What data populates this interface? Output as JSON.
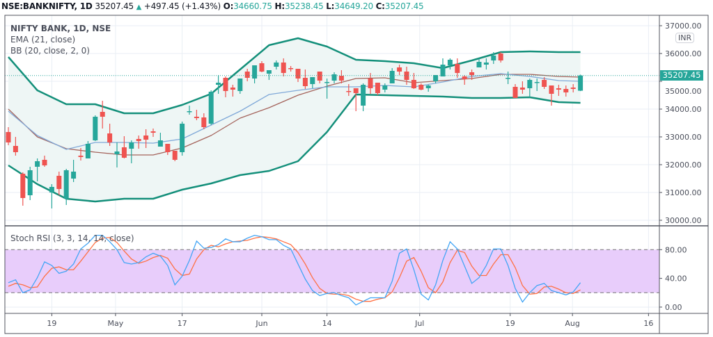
{
  "header": {
    "symbol": "NSE:BANKNIFTY, 1D",
    "last": "35207.45",
    "change": "+497.45 (+1.43%)",
    "o_label": "O:",
    "o": "34660.75",
    "h_label": "H:",
    "h": "35238.45",
    "l_label": "L:",
    "l": "34649.20",
    "c_label": "C:",
    "c": "35207.45",
    "up_icon": "triangle-up-icon"
  },
  "legend": {
    "title": "NIFTY BANK, 1D, NSE",
    "ema": "EMA (21, close)",
    "bb": "BB (20, close, 2, 0)"
  },
  "stoch": {
    "label": "Stoch RSI (3, 3, 14, 14, close)"
  },
  "currency": "INR",
  "price_tag": "35207.45",
  "price_axis": [
    "37000.00",
    "36000.00",
    "35000.00",
    "34000.00",
    "33000.00",
    "32000.00",
    "31000.00",
    "30000.00"
  ],
  "stoch_axis": [
    "80.00",
    "40.00",
    "0.00"
  ],
  "time_axis": [
    {
      "label": "19",
      "index": 6
    },
    {
      "label": "May",
      "index": 14.8
    },
    {
      "label": "17",
      "index": 24
    },
    {
      "label": "Jun",
      "index": 35
    },
    {
      "label": "14",
      "index": 44
    },
    {
      "label": "Jul",
      "index": 56.8
    },
    {
      "label": "19",
      "index": 69.3
    },
    {
      "label": "Aug",
      "index": 77.9
    },
    {
      "label": "16",
      "index": 88.4
    }
  ],
  "colors": {
    "up": "#26a69a",
    "down": "#ef5350",
    "bb": "#138f7a",
    "bb_fill": "#eef6f5",
    "basis": "#7fa8d8",
    "ema": "#a4635b",
    "k": "#42a5f5",
    "d": "#ff7043",
    "band": "#e8cdfb"
  },
  "chart_data": {
    "type": "candlestick",
    "price_range": [
      29600,
      37300
    ],
    "candles": [
      [
        33175,
        33350,
        32700,
        32800
      ],
      [
        32675,
        33000,
        32325,
        32450
      ],
      [
        31675,
        31725,
        30525,
        30800
      ],
      [
        30900,
        31925,
        30725,
        31800
      ],
      [
        31925,
        32225,
        31400,
        32125
      ],
      [
        32175,
        32325,
        31925,
        31975
      ],
      [
        31000,
        31300,
        30425,
        31200
      ],
      [
        31600,
        31750,
        30900,
        31125
      ],
      [
        30775,
        31850,
        30550,
        31800
      ],
      [
        31500,
        32175,
        31375,
        31750
      ],
      [
        32325,
        32600,
        32150,
        32275
      ],
      [
        32225,
        32850,
        32225,
        32750
      ],
      [
        32875,
        33775,
        32850,
        33725
      ],
      [
        33900,
        34300,
        33300,
        33725
      ],
      [
        33125,
        33475,
        32675,
        32800
      ],
      [
        32375,
        32800,
        31900,
        32475
      ],
      [
        32625,
        33025,
        32225,
        32250
      ],
      [
        32575,
        32875,
        32050,
        32800
      ],
      [
        32925,
        33050,
        32575,
        32850
      ],
      [
        33050,
        33275,
        32600,
        32900
      ],
      [
        33200,
        33300,
        33000,
        33150
      ],
      [
        32650,
        33150,
        32650,
        32875
      ],
      [
        32750,
        32750,
        32350,
        32450
      ],
      [
        32500,
        32500,
        32125,
        32175
      ],
      [
        32450,
        33550,
        32325,
        33475
      ],
      [
        33900,
        34125,
        33800,
        33925
      ],
      [
        33725,
        33975,
        33600,
        33675
      ],
      [
        33700,
        33850,
        33275,
        33350
      ],
      [
        33475,
        34675,
        33425,
        34625
      ],
      [
        34875,
        35225,
        34550,
        34950
      ],
      [
        35125,
        35175,
        34425,
        34650
      ],
      [
        34775,
        34875,
        34450,
        34700
      ],
      [
        34650,
        35100,
        34550,
        35100
      ],
      [
        35350,
        35450,
        35000,
        35125
      ],
      [
        35100,
        35575,
        34925,
        35575
      ],
      [
        35650,
        35725,
        35325,
        35350
      ],
      [
        35275,
        35400,
        35050,
        35400
      ],
      [
        35525,
        35750,
        35425,
        35675
      ],
      [
        35675,
        35825,
        35175,
        35300
      ],
      [
        35475,
        35550,
        35350,
        35450
      ],
      [
        35450,
        35450,
        34975,
        35100
      ],
      [
        35125,
        35425,
        34725,
        34825
      ],
      [
        34900,
        35150,
        34750,
        35150
      ],
      [
        35350,
        35350,
        34925,
        35025
      ],
      [
        34950,
        35100,
        34375,
        34975
      ],
      [
        35025,
        35325,
        34925,
        35250
      ],
      [
        35200,
        35400,
        34925,
        35025
      ],
      [
        34650,
        34900,
        34475,
        34625
      ],
      [
        34750,
        34750,
        33925,
        34575
      ],
      [
        34125,
        34925,
        33925,
        34875
      ],
      [
        35100,
        35300,
        34550,
        34750
      ],
      [
        34950,
        34950,
        34500,
        34575
      ],
      [
        34700,
        34925,
        34600,
        34850
      ],
      [
        34925,
        35475,
        34925,
        35375
      ],
      [
        35500,
        35600,
        35225,
        35350
      ],
      [
        35350,
        35525,
        34875,
        35050
      ],
      [
        35050,
        35300,
        34725,
        34750
      ],
      [
        34875,
        34925,
        34675,
        34700
      ],
      [
        34750,
        34875,
        34625,
        34850
      ],
      [
        35000,
        35225,
        34925,
        35225
      ],
      [
        35175,
        35825,
        35175,
        35600
      ],
      [
        35575,
        35825,
        35425,
        35775
      ],
      [
        35625,
        35825,
        35125,
        35300
      ],
      [
        35175,
        35225,
        34875,
        35075
      ],
      [
        35325,
        35425,
        35050,
        35225
      ],
      [
        35500,
        35825,
        35500,
        35700
      ],
      [
        35600,
        35825,
        35425,
        35675
      ],
      [
        35750,
        36050,
        35625,
        35925
      ],
      [
        36000,
        36050,
        35675,
        35750
      ],
      [
        35100,
        35350,
        34900,
        35125
      ],
      [
        34800,
        34900,
        34400,
        34400
      ],
      [
        34775,
        35000,
        34550,
        34700
      ],
      [
        34750,
        35100,
        34425,
        35050
      ],
      [
        34950,
        35100,
        34650,
        34975
      ],
      [
        35050,
        35150,
        34725,
        34800
      ],
      [
        34850,
        34850,
        34125,
        34550
      ],
      [
        34750,
        34875,
        34475,
        34700
      ],
      [
        34725,
        34850,
        34450,
        34600
      ],
      [
        34775,
        34900,
        34600,
        34725
      ],
      [
        34660.75,
        35238.45,
        34649.2,
        35207.45
      ]
    ],
    "indicator_sample_index": [
      0,
      4,
      8,
      12,
      16,
      20,
      24,
      28,
      32,
      36,
      40,
      44,
      48,
      52,
      56,
      60,
      64,
      68,
      72,
      76,
      79
    ],
    "bb_upper": [
      35875,
      34675,
      34175,
      34175,
      33850,
      33850,
      34150,
      34550,
      35425,
      36300,
      36550,
      36250,
      35775,
      35725,
      35650,
      35475,
      35750,
      36050,
      36075,
      36050,
      36050
    ],
    "bb_lower": [
      31975,
      31300,
      30775,
      30675,
      30775,
      30775,
      31100,
      31325,
      31625,
      31775,
      32125,
      33175,
      34525,
      34500,
      34475,
      34450,
      34400,
      34400,
      34425,
      34250,
      34225
    ],
    "bb_basis": [
      33925,
      33050,
      32550,
      32800,
      32800,
      32775,
      32925,
      33425,
      33925,
      34525,
      34675,
      34800,
      34800,
      34850,
      34800,
      34975,
      35175,
      35275,
      35175,
      35025,
      35000
    ],
    "ema21": [
      34000,
      33000,
      32575,
      32450,
      32350,
      32350,
      32600,
      33050,
      33675,
      34050,
      34500,
      34825,
      35100,
      35125,
      34950,
      35025,
      35100,
      35250,
      35250,
      35175,
      35150
    ],
    "stoch_k": [
      34,
      38,
      20,
      24,
      41,
      63,
      58,
      47,
      50,
      60,
      81,
      89,
      100,
      100,
      91,
      80,
      62,
      60,
      62,
      70,
      75,
      71,
      58,
      31,
      43,
      65,
      92,
      82,
      83,
      87,
      95,
      91,
      91,
      96,
      100,
      98,
      94,
      94,
      86,
      81,
      60,
      39,
      23,
      16,
      19,
      20,
      16,
      13,
      3,
      8,
      13,
      13,
      13,
      36,
      75,
      81,
      52,
      18,
      10,
      31,
      65,
      91,
      81,
      57,
      33,
      41,
      58,
      81,
      81,
      58,
      26,
      7,
      20,
      30,
      33,
      23,
      20,
      17,
      21,
      34
    ],
    "stoch_d": [
      29,
      33,
      31,
      27,
      28,
      43,
      54,
      56,
      52,
      52,
      64,
      77,
      90,
      96,
      97,
      90,
      78,
      67,
      61,
      64,
      69,
      72,
      68,
      53,
      44,
      46,
      67,
      80,
      86,
      84,
      88,
      91,
      92,
      93,
      96,
      98,
      97,
      95,
      91,
      87,
      76,
      60,
      41,
      26,
      19,
      18,
      18,
      16,
      11,
      8,
      8,
      11,
      13,
      21,
      41,
      64,
      69,
      50,
      27,
      20,
      35,
      62,
      79,
      76,
      57,
      44,
      44,
      60,
      73,
      73,
      55,
      30,
      18,
      19,
      28,
      29,
      25,
      20,
      19,
      24
    ],
    "stoch_range": [
      0,
      100
    ],
    "stoch_bands": [
      20,
      80
    ]
  }
}
